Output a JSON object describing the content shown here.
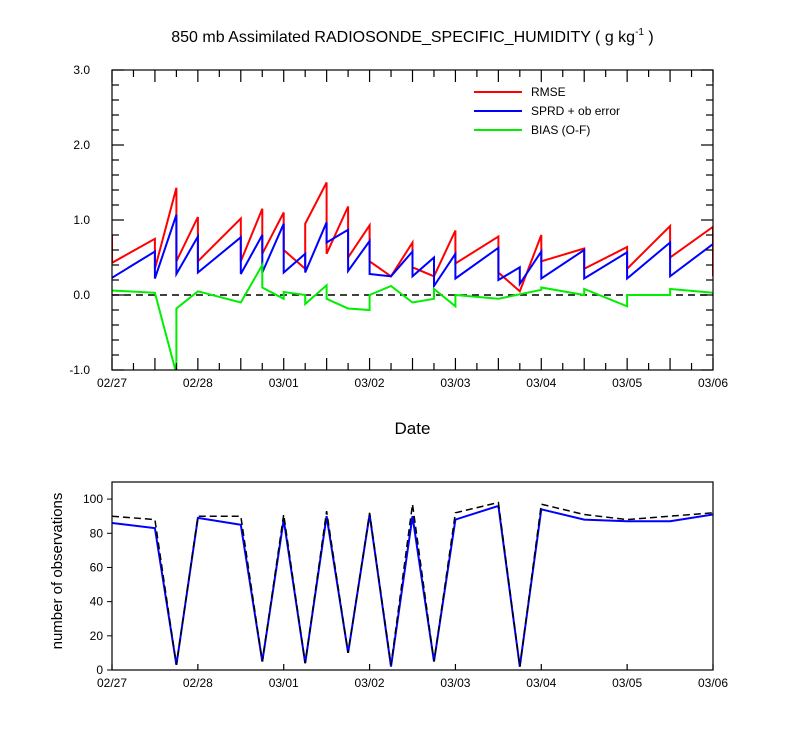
{
  "chart_data": [
    {
      "type": "line",
      "title": "850 mb Assimilated RADIOSONDE_SPECIFIC_HUMIDITY ( g kg",
      "title_sup": "-1",
      "title_tail": " )",
      "xlabel": "Date",
      "ylabel": "",
      "ylim": [
        -1.0,
        3.0
      ],
      "yticks": [
        "-1.0",
        "0.0",
        "1.0",
        "2.0",
        "3.0"
      ],
      "xlim": [
        0,
        7
      ],
      "xticks": [
        {
          "x": 0,
          "label": "02/27"
        },
        {
          "x": 1,
          "label": "02/28"
        },
        {
          "x": 2,
          "label": "03/01"
        },
        {
          "x": 3,
          "label": "03/02"
        },
        {
          "x": 4,
          "label": "03/03"
        },
        {
          "x": 5,
          "label": "03/04"
        },
        {
          "x": 6,
          "label": "03/05"
        },
        {
          "x": 7,
          "label": "03/06"
        }
      ],
      "reference_line": {
        "y": 0,
        "style": "dashed"
      },
      "legend": {
        "placement": "top-right"
      },
      "series": [
        {
          "name": "RMSE",
          "color": "#ff0000",
          "points": [
            [
              0,
              0.8
            ],
            [
              0,
              0.43
            ],
            [
              0.5,
              0.75
            ],
            [
              0.5,
              0.35
            ],
            [
              0.75,
              1.43
            ],
            [
              0.75,
              0.45
            ],
            [
              1,
              1.04
            ],
            [
              1,
              0.45
            ],
            [
              1.5,
              1.02
            ],
            [
              1.5,
              0.45
            ],
            [
              1.75,
              1.15
            ],
            [
              1.75,
              0.55
            ],
            [
              2,
              1.1
            ],
            [
              2,
              0.6
            ],
            [
              2.25,
              0.35
            ],
            [
              2.25,
              0.95
            ],
            [
              2.5,
              1.5
            ],
            [
              2.5,
              0.55
            ],
            [
              2.75,
              1.18
            ],
            [
              2.75,
              0.5
            ],
            [
              3,
              0.93
            ],
            [
              3,
              0.45
            ],
            [
              3.25,
              0.25
            ],
            [
              3.5,
              0.7
            ],
            [
              3.5,
              0.37
            ],
            [
              3.75,
              0.25
            ],
            [
              4,
              0.86
            ],
            [
              4,
              0.42
            ],
            [
              4.5,
              0.78
            ],
            [
              4.5,
              0.3
            ],
            [
              4.75,
              0.05
            ],
            [
              5,
              0.8
            ],
            [
              5,
              0.45
            ],
            [
              5.5,
              0.62
            ],
            [
              5.5,
              0.35
            ],
            [
              6,
              0.64
            ],
            [
              6,
              0.35
            ],
            [
              6.5,
              0.92
            ],
            [
              6.5,
              0.5
            ],
            [
              7,
              0.91
            ],
            [
              7,
              0.25
            ]
          ]
        },
        {
          "name": "SPRD + ob error",
          "color": "#0000ff",
          "points": [
            [
              0,
              0.23
            ],
            [
              0.5,
              0.58
            ],
            [
              0.5,
              0.22
            ],
            [
              0.75,
              1.07
            ],
            [
              0.75,
              0.28
            ],
            [
              1,
              0.78
            ],
            [
              1,
              0.3
            ],
            [
              1.5,
              0.77
            ],
            [
              1.5,
              0.28
            ],
            [
              1.75,
              0.8
            ],
            [
              1.75,
              0.3
            ],
            [
              2,
              0.95
            ],
            [
              2,
              0.3
            ],
            [
              2.25,
              0.55
            ],
            [
              2.25,
              0.3
            ],
            [
              2.5,
              0.97
            ],
            [
              2.5,
              0.7
            ],
            [
              2.75,
              0.87
            ],
            [
              2.75,
              0.32
            ],
            [
              3,
              0.72
            ],
            [
              3,
              0.28
            ],
            [
              3.25,
              0.25
            ],
            [
              3.5,
              0.58
            ],
            [
              3.5,
              0.25
            ],
            [
              3.75,
              0.5
            ],
            [
              3.75,
              0.12
            ],
            [
              4,
              0.55
            ],
            [
              4,
              0.22
            ],
            [
              4.5,
              0.63
            ],
            [
              4.5,
              0.2
            ],
            [
              4.75,
              0.37
            ],
            [
              4.75,
              0.15
            ],
            [
              5,
              0.58
            ],
            [
              5,
              0.22
            ],
            [
              5.5,
              0.6
            ],
            [
              5.5,
              0.22
            ],
            [
              6,
              0.57
            ],
            [
              6,
              0.22
            ],
            [
              6.5,
              0.7
            ],
            [
              6.5,
              0.25
            ],
            [
              7,
              0.68
            ]
          ]
        },
        {
          "name": "BIAS (O-F)",
          "color": "#00ee00",
          "points": [
            [
              0,
              0.06
            ],
            [
              0.5,
              0.03
            ],
            [
              0.75,
              -1.05
            ],
            [
              0.75,
              -0.18
            ],
            [
              1,
              0.05
            ],
            [
              1.5,
              -0.1
            ],
            [
              1.75,
              0.4
            ],
            [
              1.75,
              0.1
            ],
            [
              2,
              -0.05
            ],
            [
              2,
              0.04
            ],
            [
              2.25,
              0.0
            ],
            [
              2.25,
              -0.12
            ],
            [
              2.5,
              0.13
            ],
            [
              2.5,
              -0.05
            ],
            [
              2.75,
              -0.18
            ],
            [
              3,
              -0.2
            ],
            [
              3,
              0.0
            ],
            [
              3.25,
              0.12
            ],
            [
              3.5,
              -0.1
            ],
            [
              3.75,
              -0.05
            ],
            [
              3.75,
              0.08
            ],
            [
              4,
              -0.15
            ],
            [
              4,
              0.0
            ],
            [
              4.5,
              -0.05
            ],
            [
              5,
              0.07
            ],
            [
              5,
              0.1
            ],
            [
              5.5,
              0.0
            ],
            [
              5.5,
              0.08
            ],
            [
              6,
              -0.15
            ],
            [
              6,
              0.0
            ],
            [
              6.5,
              0.0
            ],
            [
              6.5,
              0.08
            ],
            [
              7,
              0.03
            ]
          ]
        }
      ]
    },
    {
      "type": "line",
      "title": "",
      "xlabel": "",
      "ylabel": "number of observations",
      "ylim": [
        0,
        110
      ],
      "yticks": [
        "0",
        "20",
        "40",
        "60",
        "80",
        "100"
      ],
      "xlim": [
        0,
        7
      ],
      "xticks": [
        {
          "x": 0,
          "label": "02/27"
        },
        {
          "x": 1,
          "label": "02/28"
        },
        {
          "x": 2,
          "label": "03/01"
        },
        {
          "x": 3,
          "label": "03/02"
        },
        {
          "x": 4,
          "label": "03/03"
        },
        {
          "x": 5,
          "label": "03/04"
        },
        {
          "x": 6,
          "label": "03/05"
        },
        {
          "x": 7,
          "label": "03/06"
        }
      ],
      "series": [
        {
          "color": "#0000ff",
          "style": "solid",
          "points": [
            [
              0,
              86
            ],
            [
              0.5,
              83
            ],
            [
              0.75,
              3
            ],
            [
              1,
              89
            ],
            [
              1.5,
              85
            ],
            [
              1.75,
              5
            ],
            [
              2,
              88
            ],
            [
              2.25,
              4
            ],
            [
              2.5,
              90
            ],
            [
              2.75,
              10
            ],
            [
              3,
              91
            ],
            [
              3.25,
              2
            ],
            [
              3.5,
              90
            ],
            [
              3.75,
              5
            ],
            [
              4,
              88
            ],
            [
              4.5,
              96
            ],
            [
              4.75,
              2
            ],
            [
              5,
              94
            ],
            [
              5.5,
              88
            ],
            [
              6,
              87
            ],
            [
              6.5,
              87
            ],
            [
              7,
              91
            ]
          ]
        },
        {
          "color": "#000000",
          "style": "dashed",
          "points": [
            [
              0,
              90
            ],
            [
              0.5,
              88
            ],
            [
              0.75,
              3
            ],
            [
              1,
              90
            ],
            [
              1.5,
              90
            ],
            [
              1.75,
              5
            ],
            [
              2,
              91
            ],
            [
              2.25,
              4
            ],
            [
              2.5,
              93
            ],
            [
              2.75,
              10
            ],
            [
              3,
              92
            ],
            [
              3.25,
              3
            ],
            [
              3.5,
              97
            ],
            [
              3.75,
              5
            ],
            [
              4,
              92
            ],
            [
              4.5,
              98
            ],
            [
              4.75,
              2
            ],
            [
              5,
              97
            ],
            [
              5.5,
              91
            ],
            [
              6,
              88
            ],
            [
              6.5,
              90
            ],
            [
              7,
              92
            ]
          ]
        }
      ]
    }
  ]
}
